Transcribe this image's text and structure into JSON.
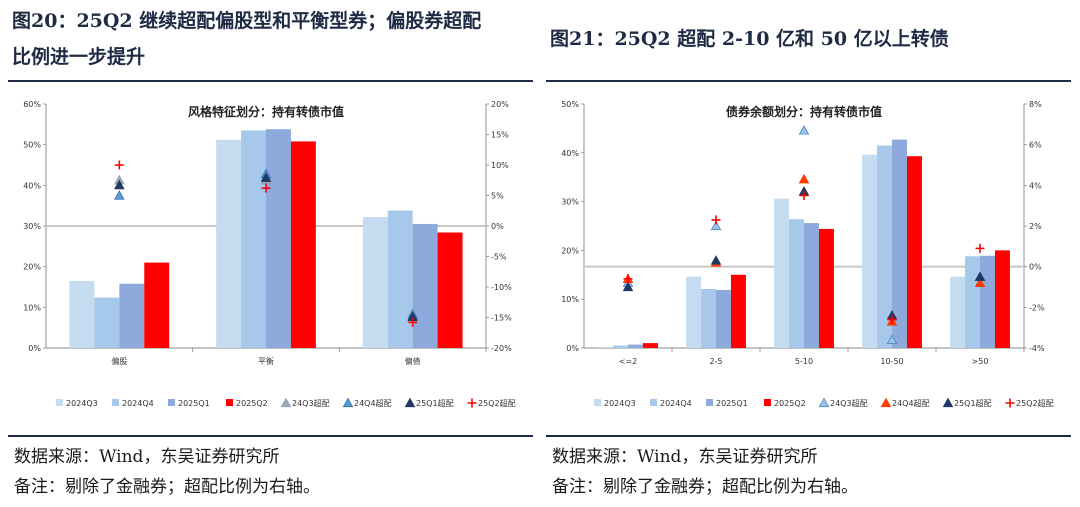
{
  "left": {
    "figure_title_line1": "图20：25Q2 继续超配偏股型和平衡型券；偏股券超配",
    "figure_title_line2": "比例进一步提升",
    "source": "数据来源：Wind，东吴证券研究所",
    "note": "备注：剔除了金融券；超配比例为右轴。"
  },
  "right": {
    "figure_title": "图21：25Q2 超配 2-10 亿和 50 亿以上转债",
    "source": "数据来源：Wind，东吴证券研究所",
    "note": "备注：剔除了金融券；超配比例为右轴。"
  },
  "colors": {
    "2024Q3": "#c5dcf0",
    "2024Q4": "#a6c8ea",
    "2025Q1": "#8ea9dc",
    "2025Q2": "#ff0000",
    "24Q3超配": "#a6a6a6",
    "24Q4超配": "#5b9bd5",
    "25Q1超配": "#1f3864",
    "25Q2超配": "#ff0000",
    "title_navy": "#1f2a44"
  },
  "chart_data": [
    {
      "type": "bar",
      "title": "风格特征划分：持有转债市值",
      "categories": [
        "偏股",
        "平衡",
        "偏债"
      ],
      "y_left": {
        "min": 0,
        "max": 60,
        "step": 10,
        "format": "percent"
      },
      "y_right": {
        "min": -20,
        "max": 20,
        "step": 5,
        "format": "percent"
      },
      "series": [
        {
          "name": "2024Q3",
          "axis": "left",
          "kind": "bar",
          "values": [
            16.5,
            51.2,
            32.2
          ]
        },
        {
          "name": "2024Q4",
          "axis": "left",
          "kind": "bar",
          "values": [
            12.4,
            53.5,
            33.8
          ]
        },
        {
          "name": "2025Q1",
          "axis": "left",
          "kind": "bar",
          "values": [
            15.8,
            53.8,
            30.5
          ]
        },
        {
          "name": "2025Q2",
          "axis": "left",
          "kind": "bar",
          "values": [
            21.0,
            50.8,
            28.4
          ]
        },
        {
          "name": "24Q3超配",
          "axis": "right",
          "kind": "marker",
          "marker": "triangle-gray",
          "values": [
            7.5,
            7.5,
            -14.3
          ]
        },
        {
          "name": "24Q4超配",
          "axis": "right",
          "kind": "marker",
          "marker": "triangle-blue",
          "values": [
            5.0,
            8.5,
            -14.6
          ]
        },
        {
          "name": "25Q1超配",
          "axis": "right",
          "kind": "marker",
          "marker": "triangle-navy",
          "values": [
            6.7,
            7.9,
            -14.9
          ]
        },
        {
          "name": "25Q2超配",
          "axis": "right",
          "kind": "marker",
          "marker": "plus",
          "values": [
            10.0,
            6.2,
            -15.8
          ]
        }
      ],
      "legend_position": "bottom"
    },
    {
      "type": "bar",
      "title": "债券余额划分：持有转债市值",
      "categories": [
        "<=2",
        "2-5",
        "5-10",
        "10-50",
        ">50"
      ],
      "y_left": {
        "min": 0,
        "max": 50,
        "step": 10,
        "format": "percent"
      },
      "y_right": {
        "min": -4,
        "max": 8,
        "step": 2,
        "format": "percent"
      },
      "series": [
        {
          "name": "2024Q3",
          "axis": "left",
          "kind": "bar",
          "values": [
            0.2,
            14.6,
            30.6,
            39.6,
            14.6
          ]
        },
        {
          "name": "2024Q4",
          "axis": "left",
          "kind": "bar",
          "values": [
            0.5,
            12.1,
            26.4,
            41.5,
            18.8
          ]
        },
        {
          "name": "2025Q1",
          "axis": "left",
          "kind": "bar",
          "values": [
            0.7,
            11.9,
            25.6,
            42.7,
            18.9
          ]
        },
        {
          "name": "2025Q2",
          "axis": "left",
          "kind": "bar",
          "values": [
            1.0,
            15.0,
            24.4,
            39.3,
            20.0
          ]
        },
        {
          "name": "24Q3超配",
          "axis": "right",
          "kind": "marker",
          "marker": "triangle-outline",
          "values": [
            -0.8,
            2.0,
            6.7,
            -3.6,
            -0.5
          ]
        },
        {
          "name": "24Q4超配",
          "axis": "right",
          "kind": "marker",
          "marker": "triangle-red",
          "values": [
            -0.6,
            0.2,
            4.3,
            -2.7,
            -0.8
          ]
        },
        {
          "name": "25Q1超配",
          "axis": "right",
          "kind": "marker",
          "marker": "triangle-navy",
          "values": [
            -1.0,
            0.3,
            3.7,
            -2.4,
            -0.5
          ]
        },
        {
          "name": "25Q2超配",
          "axis": "right",
          "kind": "marker",
          "marker": "plus",
          "values": [
            -0.6,
            2.3,
            3.5,
            -2.6,
            0.9
          ]
        }
      ],
      "legend_position": "bottom"
    }
  ]
}
